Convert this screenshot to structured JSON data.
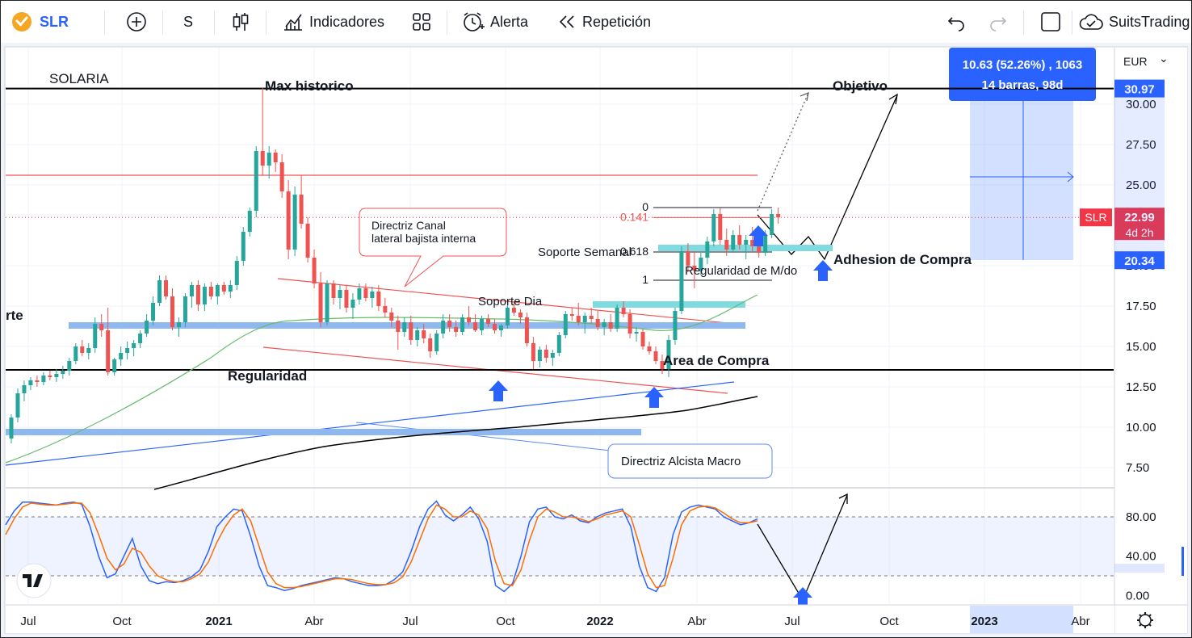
{
  "toolbar": {
    "symbol": "SLR",
    "interval": "S",
    "indicators_label": "Indicadores",
    "alert_label": "Alerta",
    "replay_label": "Repetición",
    "account_label": "SuitsTrading"
  },
  "colors": {
    "up": "#26a69a",
    "down": "#ef5350",
    "accent": "#2962ff",
    "price_tag": "#f23645",
    "ma_green": "#66bb6a",
    "ma_black": "#000000",
    "stoch_k": "#2962ff",
    "stoch_d": "#ff6d00"
  },
  "chart_data": [
    {
      "type": "candlestick",
      "symbol": "SLR",
      "title": "SOLARIA",
      "currency": "EUR",
      "y_ticks": [
        7.5,
        10,
        12.5,
        15,
        17.5,
        20,
        25,
        27.5,
        30
      ],
      "y_tick_labels": [
        "7.50",
        "10.00",
        "12.50",
        "15.00",
        "17.50",
        "20.00",
        "25.00",
        "27.50",
        "30.00"
      ],
      "ylim": [
        6.3,
        33.5
      ],
      "x_labels": [
        "Jul",
        "Oct",
        "2021",
        "Abr",
        "Jul",
        "Oct",
        "2022",
        "Abr",
        "Jul",
        "Oct",
        "2023",
        "Abr"
      ],
      "last_price": "22.99",
      "countdown": "4d 2h",
      "price_tags": {
        "target": "30.97",
        "entry": "20.34"
      },
      "measure_box": {
        "line1": "10.63 (52.26%) , 1063",
        "line2": "14 barras, 98d"
      },
      "fib_levels": [
        {
          "label": "0",
          "value": 23.6
        },
        {
          "label": "0.141",
          "value": 22.98
        },
        {
          "label": "0.618",
          "value": 20.85
        },
        {
          "label": "1",
          "value": 19.1
        }
      ],
      "horizontal_levels": [
        {
          "name": "max-historico",
          "value": 30.97,
          "color": "#000000"
        },
        {
          "name": "regularidad",
          "value": 13.55,
          "color": "#000000"
        },
        {
          "name": "red-resistance",
          "value": 25.6,
          "color": "#ef5350"
        }
      ],
      "support_zones": [
        {
          "name": "soporte-blue",
          "value": 16.3,
          "color": "#90b8f0"
        },
        {
          "name": "soporte-macro-blue",
          "value": 9.7,
          "color": "#90b8f0"
        },
        {
          "name": "soporte-dia",
          "value": 17.6,
          "color": "#7fdbe0"
        },
        {
          "name": "soporte-semanal",
          "value": 21.1,
          "color": "#7fdbe0"
        }
      ],
      "annotations": [
        "Max historico",
        "Objetivo",
        "Regularidad",
        "Directriz Canal\nlateral bajista interna",
        "Soporte Semanal",
        "Soporte Dia",
        "Regularidad de M/do",
        "Adhesion de Compra",
        "Area de Compra",
        "Directriz Alcista Macro",
        "rte"
      ],
      "series": [
        {
          "name": "SLR",
          "candles": [
            [
              9.3,
              10.8,
              9.0,
              10.6
            ],
            [
              10.6,
              12.4,
              10.3,
              12.1
            ],
            [
              12.1,
              12.9,
              11.6,
              12.6
            ],
            [
              12.6,
              13.1,
              12.3,
              12.9
            ],
            [
              12.9,
              13.2,
              12.5,
              12.8
            ],
            [
              12.8,
              13.4,
              12.6,
              13.2
            ],
            [
              13.2,
              13.5,
              12.9,
              13.1
            ],
            [
              13.1,
              13.6,
              12.8,
              13.3
            ],
            [
              13.3,
              13.8,
              13.0,
              13.5
            ],
            [
              13.5,
              14.3,
              13.2,
              14.1
            ],
            [
              14.1,
              15.2,
              13.9,
              15.0
            ],
            [
              15.0,
              15.4,
              14.4,
              14.6
            ],
            [
              14.6,
              15.2,
              14.2,
              14.9
            ],
            [
              14.9,
              16.8,
              14.6,
              16.4
            ],
            [
              16.4,
              17.0,
              15.6,
              16.0
            ],
            [
              16.0,
              17.4,
              13.2,
              13.4
            ],
            [
              13.4,
              14.3,
              13.2,
              14.2
            ],
            [
              14.2,
              15.0,
              13.8,
              14.6
            ],
            [
              14.6,
              15.3,
              14.2,
              14.9
            ],
            [
              14.9,
              15.4,
              14.4,
              15.2
            ],
            [
              15.2,
              16.0,
              14.9,
              15.8
            ],
            [
              15.8,
              17.0,
              15.6,
              16.6
            ],
            [
              16.6,
              18.1,
              16.3,
              17.7
            ],
            [
              17.7,
              19.4,
              17.5,
              19.1
            ],
            [
              19.1,
              19.4,
              17.9,
              18.1
            ],
            [
              18.1,
              18.6,
              16.0,
              16.2
            ],
            [
              16.2,
              16.8,
              15.6,
              16.5
            ],
            [
              16.5,
              18.3,
              16.2,
              18.1
            ],
            [
              18.1,
              19.0,
              17.4,
              18.8
            ],
            [
              18.8,
              19.1,
              17.2,
              17.6
            ],
            [
              17.6,
              18.9,
              17.2,
              18.7
            ],
            [
              18.7,
              19.0,
              17.9,
              18.1
            ],
            [
              18.1,
              18.9,
              17.6,
              18.8
            ],
            [
              18.8,
              19.0,
              18.2,
              18.4
            ],
            [
              18.4,
              19.1,
              18.0,
              18.8
            ],
            [
              18.8,
              20.6,
              18.5,
              20.3
            ],
            [
              20.3,
              22.4,
              20.0,
              22.1
            ],
            [
              22.1,
              23.6,
              21.8,
              23.4
            ],
            [
              23.4,
              27.4,
              23.0,
              27.1
            ],
            [
              27.1,
              31.0,
              25.6,
              26.2
            ],
            [
              26.2,
              27.4,
              25.4,
              27.0
            ],
            [
              27.0,
              27.2,
              25.8,
              26.4
            ],
            [
              26.4,
              26.9,
              24.2,
              24.6
            ],
            [
              24.6,
              25.3,
              20.4,
              21.0
            ],
            [
              21.0,
              24.9,
              20.6,
              24.4
            ],
            [
              24.4,
              25.6,
              22.3,
              22.6
            ],
            [
              22.6,
              23.0,
              20.2,
              20.5
            ],
            [
              20.5,
              21.0,
              18.6,
              18.9
            ],
            [
              18.9,
              19.6,
              16.2,
              16.5
            ],
            [
              16.5,
              19.1,
              16.3,
              18.9
            ],
            [
              18.9,
              19.1,
              17.6,
              18.0
            ],
            [
              18.0,
              18.8,
              17.3,
              18.5
            ],
            [
              18.5,
              18.8,
              17.1,
              17.4
            ],
            [
              17.4,
              18.3,
              16.7,
              17.9
            ],
            [
              17.9,
              18.9,
              17.6,
              18.6
            ],
            [
              18.6,
              18.9,
              17.8,
              18.0
            ],
            [
              18.0,
              18.7,
              17.4,
              18.4
            ],
            [
              18.4,
              18.8,
              17.2,
              17.5
            ],
            [
              17.5,
              18.0,
              16.8,
              17.1
            ],
            [
              17.1,
              17.4,
              16.2,
              16.6
            ],
            [
              16.6,
              16.9,
              14.8,
              15.9
            ],
            [
              15.9,
              16.8,
              15.6,
              16.5
            ],
            [
              16.5,
              16.9,
              15.1,
              15.4
            ],
            [
              15.4,
              16.2,
              15.0,
              16.0
            ],
            [
              16.0,
              16.4,
              15.2,
              15.5
            ],
            [
              15.5,
              15.8,
              14.3,
              14.7
            ],
            [
              14.7,
              16.0,
              14.5,
              15.8
            ],
            [
              15.8,
              17.0,
              15.5,
              16.6
            ],
            [
              16.6,
              17.0,
              15.9,
              16.2
            ],
            [
              16.2,
              16.6,
              15.6,
              15.9
            ],
            [
              15.9,
              17.0,
              15.7,
              16.8
            ],
            [
              16.8,
              17.5,
              16.3,
              16.5
            ],
            [
              16.5,
              17.0,
              15.9,
              16.0
            ],
            [
              16.0,
              16.9,
              15.7,
              16.7
            ],
            [
              16.7,
              17.0,
              16.2,
              16.4
            ],
            [
              16.4,
              16.7,
              15.8,
              16.0
            ],
            [
              16.0,
              16.4,
              15.6,
              16.3
            ],
            [
              16.3,
              17.6,
              16.1,
              17.4
            ],
            [
              17.4,
              17.8,
              16.9,
              17.1
            ],
            [
              17.1,
              17.3,
              16.4,
              16.8
            ],
            [
              16.8,
              17.1,
              15.0,
              15.2
            ],
            [
              15.2,
              15.6,
              13.6,
              14.1
            ],
            [
              14.1,
              15.0,
              13.7,
              14.8
            ],
            [
              14.8,
              15.1,
              14.0,
              14.3
            ],
            [
              14.3,
              14.8,
              13.8,
              14.6
            ],
            [
              14.6,
              15.9,
              14.4,
              15.7
            ],
            [
              15.7,
              17.2,
              15.5,
              17.0
            ],
            [
              17.0,
              17.4,
              16.6,
              16.9
            ],
            [
              16.9,
              17.7,
              16.3,
              16.5
            ],
            [
              16.5,
              17.1,
              15.8,
              16.9
            ],
            [
              16.9,
              17.4,
              16.4,
              16.7
            ],
            [
              16.7,
              17.2,
              16.0,
              16.2
            ],
            [
              16.2,
              16.7,
              15.7,
              16.5
            ],
            [
              16.5,
              17.0,
              15.9,
              16.1
            ],
            [
              16.1,
              17.6,
              15.9,
              17.4
            ],
            [
              17.4,
              17.8,
              16.8,
              17.0
            ],
            [
              17.0,
              17.3,
              15.5,
              15.8
            ],
            [
              15.8,
              16.2,
              15.3,
              15.9
            ],
            [
              15.9,
              16.1,
              14.8,
              15.0
            ],
            [
              15.0,
              15.3,
              14.5,
              14.7
            ],
            [
              14.7,
              15.0,
              13.9,
              14.1
            ],
            [
              14.1,
              14.5,
              13.3,
              13.6
            ],
            [
              13.6,
              15.7,
              13.1,
              15.4
            ],
            [
              15.4,
              17.4,
              15.1,
              17.2
            ],
            [
              17.2,
              21.2,
              17.0,
              20.9
            ],
            [
              20.9,
              21.4,
              19.6,
              20.0
            ],
            [
              20.0,
              20.9,
              18.6,
              19.7
            ],
            [
              19.7,
              20.8,
              19.4,
              20.5
            ],
            [
              20.5,
              21.8,
              20.1,
              21.5
            ],
            [
              21.5,
              23.5,
              21.2,
              23.2
            ],
            [
              23.2,
              23.6,
              21.3,
              21.6
            ],
            [
              21.6,
              22.3,
              20.6,
              21.0
            ],
            [
              21.0,
              22.2,
              20.8,
              21.9
            ],
            [
              21.9,
              22.5,
              21.0,
              21.3
            ],
            [
              21.3,
              21.9,
              20.4,
              21.6
            ],
            [
              21.6,
              22.4,
              20.9,
              21.2
            ],
            [
              21.2,
              21.6,
              20.5,
              20.8
            ],
            [
              20.8,
              22.2,
              20.6,
              21.9
            ],
            [
              21.9,
              23.5,
              21.7,
              23.2
            ],
            [
              23.2,
              23.6,
              22.6,
              22.99
            ]
          ]
        }
      ]
    },
    {
      "type": "line",
      "title": "",
      "y_ticks": [
        0,
        40,
        80
      ],
      "y_tick_labels": [
        "0.00",
        "40.00",
        "80.00"
      ],
      "ylim": [
        -8,
        108
      ],
      "band": [
        20,
        80
      ],
      "series": [
        {
          "name": "",
          "values": [
            72,
            86,
            95,
            95,
            94,
            93,
            92,
            94,
            95,
            93,
            70,
            40,
            18,
            22,
            40,
            58,
            30,
            15,
            12,
            14,
            13,
            15,
            19,
            26,
            45,
            70,
            80,
            88,
            86,
            60,
            30,
            10,
            8,
            5,
            7,
            10,
            12,
            14,
            16,
            18,
            17,
            14,
            12,
            10,
            10,
            11,
            16,
            24,
            45,
            70,
            88,
            96,
            82,
            76,
            82,
            90,
            78,
            55,
            10,
            4,
            12,
            40,
            75,
            88,
            90,
            80,
            78,
            82,
            76,
            74,
            80,
            84,
            86,
            88,
            70,
            30,
            8,
            4,
            18,
            62,
            85,
            90,
            92,
            90,
            88,
            80,
            76,
            72,
            74,
            78
          ]
        },
        {
          "name": "",
          "values": [
            62,
            78,
            90,
            94,
            93,
            92,
            92,
            93,
            94,
            94,
            84,
            62,
            38,
            26,
            32,
            48,
            44,
            30,
            20,
            16,
            14,
            14,
            17,
            22,
            34,
            54,
            70,
            82,
            88,
            76,
            50,
            24,
            12,
            8,
            8,
            9,
            11,
            13,
            15,
            17,
            17,
            16,
            14,
            12,
            11,
            11,
            13,
            19,
            34,
            56,
            78,
            92,
            88,
            80,
            80,
            86,
            82,
            68,
            34,
            12,
            10,
            26,
            56,
            80,
            88,
            85,
            80,
            80,
            78,
            75,
            78,
            82,
            84,
            86,
            80,
            52,
            22,
            8,
            10,
            38,
            72,
            86,
            90,
            91,
            89,
            84,
            78,
            74,
            74,
            76
          ]
        }
      ]
    }
  ]
}
